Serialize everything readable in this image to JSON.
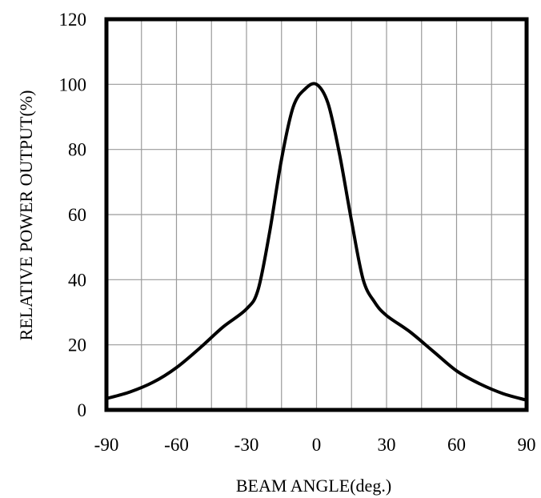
{
  "chart_data": {
    "type": "line",
    "title": "",
    "xlabel": "BEAM ANGLE(deg.)",
    "ylabel": "RELATIVE POWER OUTPUT(%)",
    "xlim": [
      -90,
      90
    ],
    "ylim": [
      0,
      120
    ],
    "grid": true,
    "x_ticks": [
      -90,
      -60,
      -30,
      0,
      30,
      60,
      90
    ],
    "y_ticks": [
      0,
      20,
      40,
      60,
      80,
      100,
      120
    ],
    "series": [
      {
        "color": "#000000",
        "x": [
          -90,
          -80,
          -70,
          -60,
          -50,
          -40,
          -30,
          -25,
          -20,
          -15,
          -10,
          -5,
          0,
          5,
          10,
          15,
          20,
          25,
          30,
          40,
          50,
          60,
          70,
          80,
          90
        ],
        "y": [
          3.5,
          5.5,
          8.5,
          13,
          19,
          25.5,
          31,
          37,
          55,
          77,
          93,
          98.5,
          100,
          94,
          78,
          58,
          40,
          33,
          29,
          24,
          18,
          12,
          8,
          5,
          3
        ]
      }
    ]
  }
}
